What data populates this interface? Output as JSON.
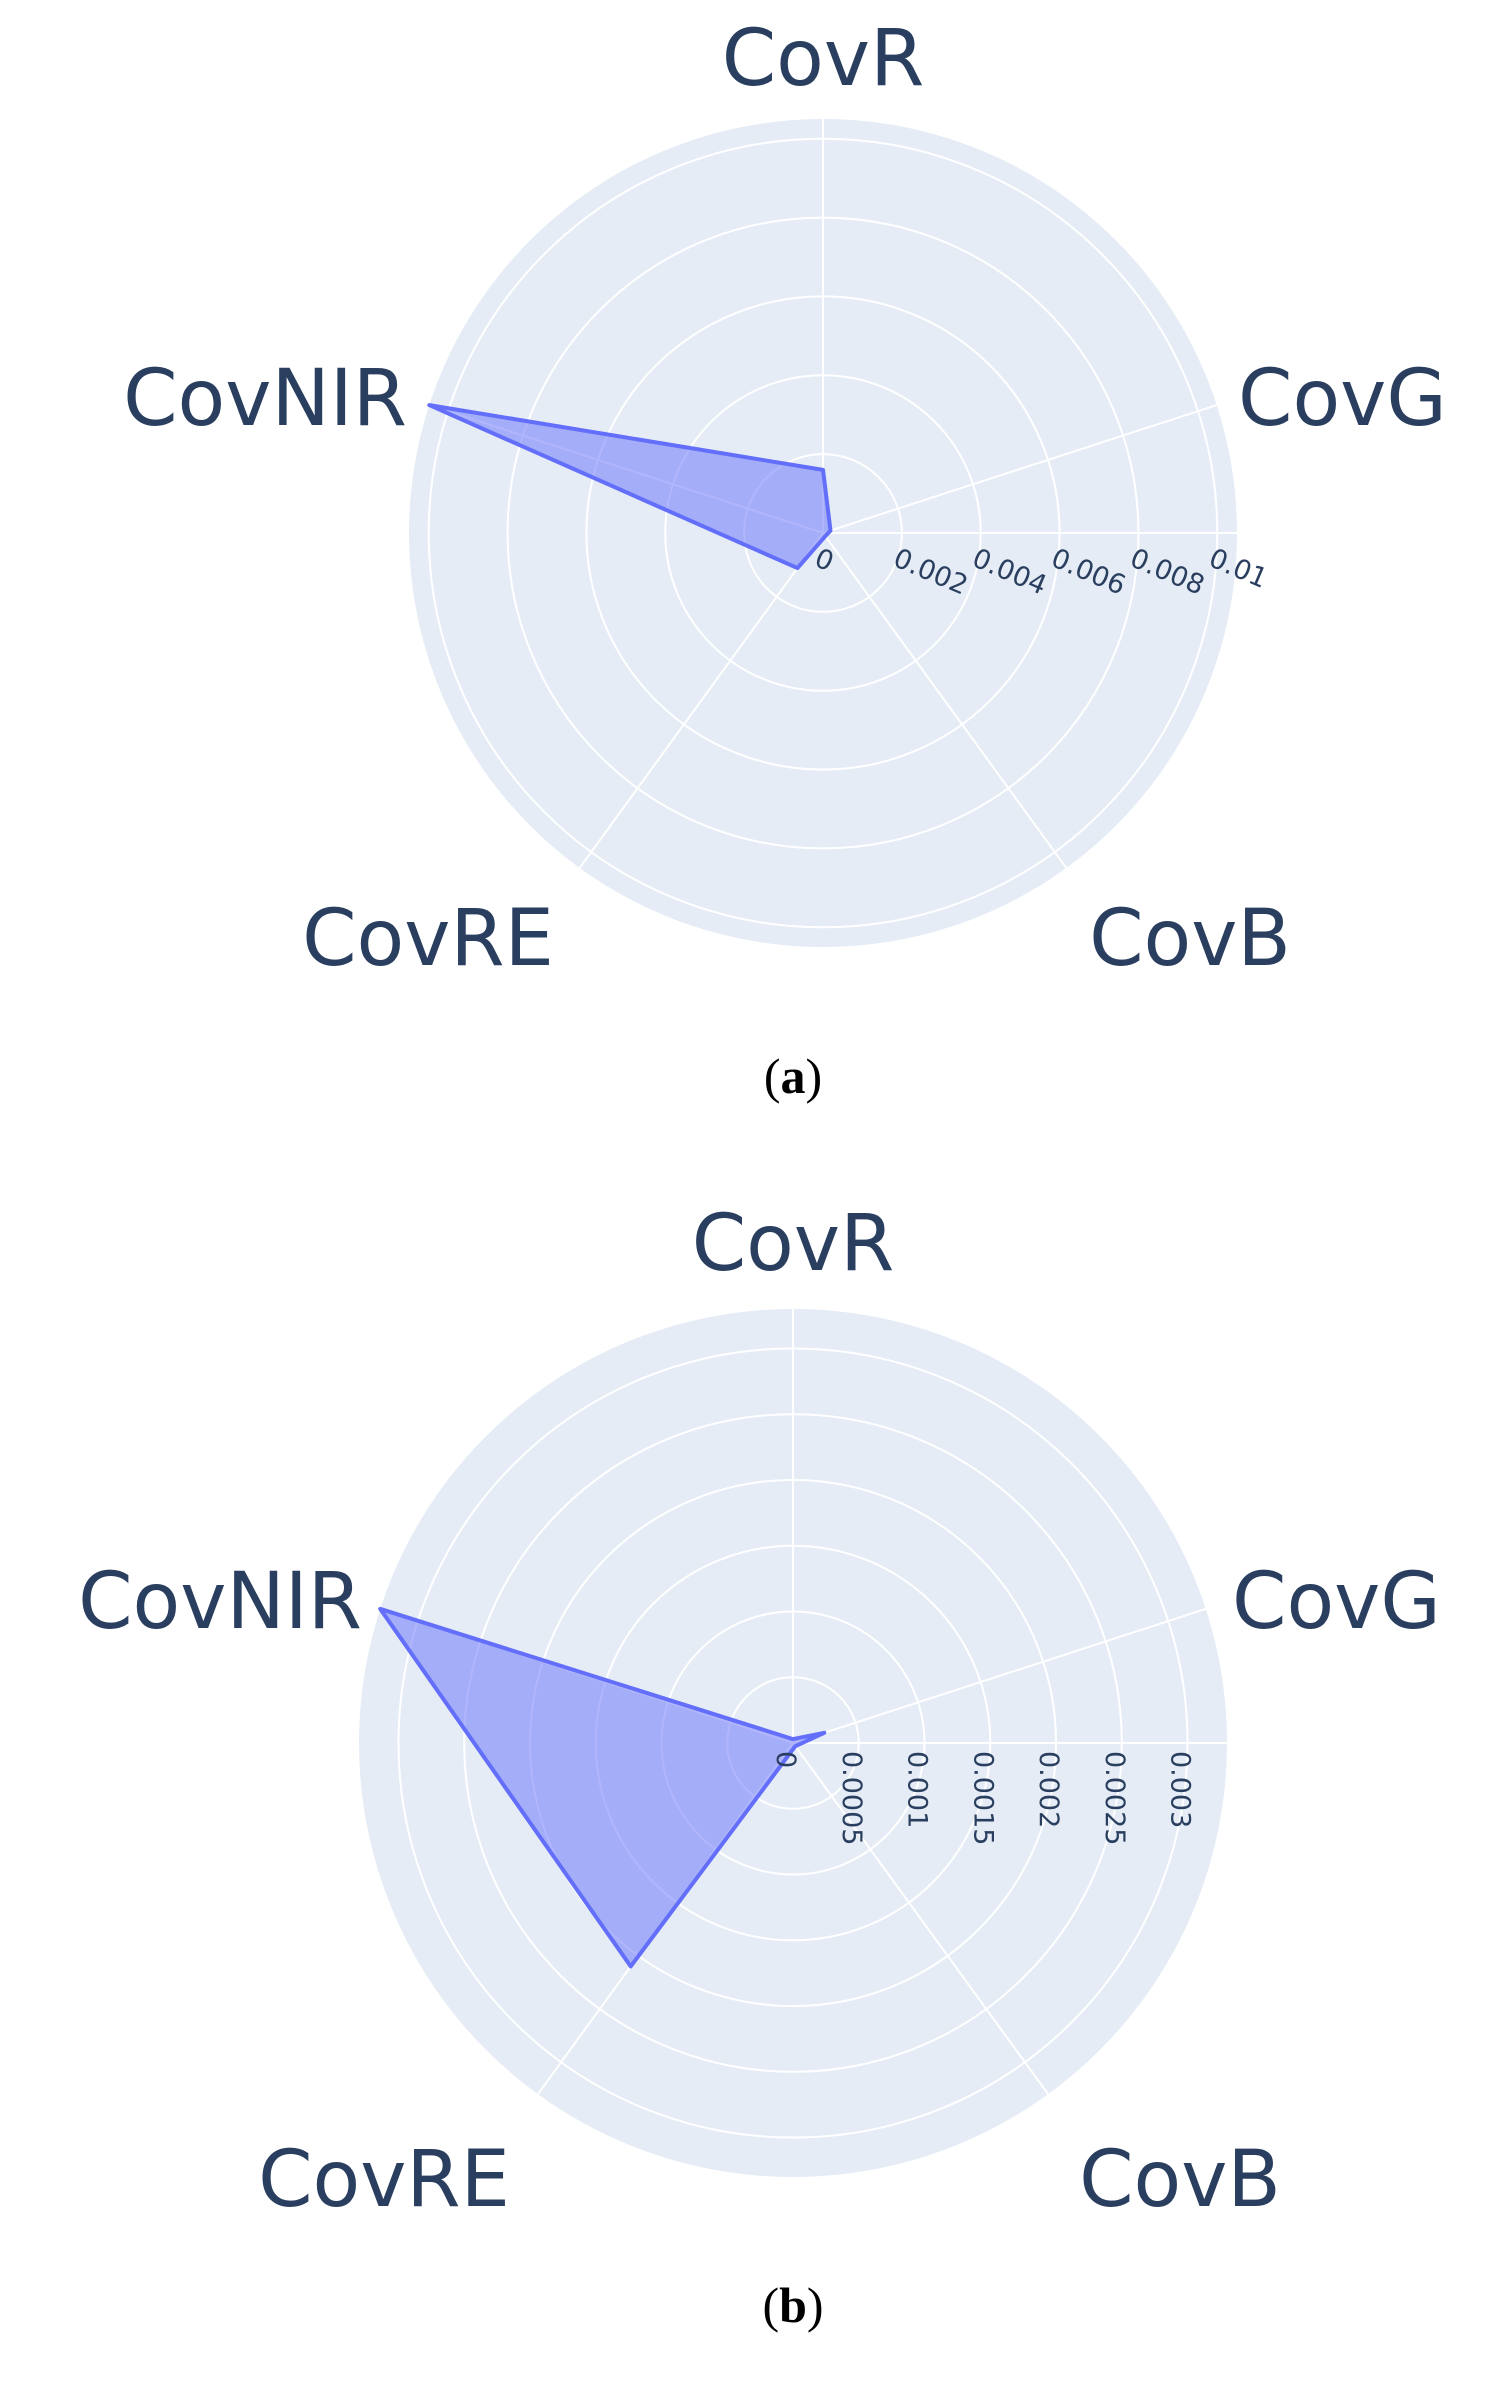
{
  "chart_data": [
    {
      "type": "radar",
      "panel_label": "a",
      "axes": [
        "CovR",
        "CovG",
        "CovB",
        "CovRE",
        "CovNIR"
      ],
      "radial_range": [
        0,
        0.0105
      ],
      "radial_ticks": [
        0,
        0.002,
        0.004,
        0.006,
        0.008,
        0.01
      ],
      "radial_tick_labels": [
        "0",
        "0.002",
        "0.004",
        "0.006",
        "0.008",
        "0.01"
      ],
      "series": [
        {
          "values": [
            0.0016,
            0.0002,
            0.0001,
            0.0011,
            0.0105
          ]
        }
      ],
      "colors": {
        "background": "#e5ecf6",
        "grid": "#ffffff",
        "fill": "#636efa",
        "text": "#2a3f5f"
      },
      "grid": true
    },
    {
      "type": "radar",
      "panel_label": "b",
      "axes": [
        "CovR",
        "CovG",
        "CovB",
        "CovRE",
        "CovNIR"
      ],
      "radial_range": [
        0,
        0.0033
      ],
      "radial_ticks": [
        0,
        0.0005,
        0.001,
        0.0015,
        0.002,
        0.0025,
        0.003
      ],
      "radial_tick_labels": [
        "0",
        "0.0005",
        "0.001",
        "0.0015",
        "0.002",
        "0.0025",
        "0.003"
      ],
      "series": [
        {
          "values": [
            3e-05,
            0.00025,
            3e-05,
            0.0021,
            0.0033
          ]
        }
      ],
      "colors": {
        "background": "#e5ecf6",
        "grid": "#ffffff",
        "fill": "#636efa",
        "text": "#2a3f5f"
      },
      "grid": true
    }
  ]
}
